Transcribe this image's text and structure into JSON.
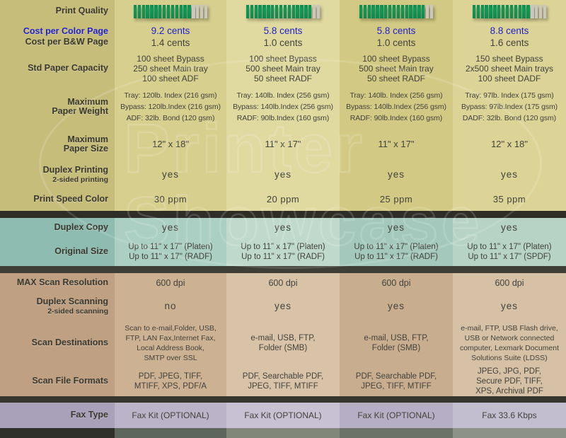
{
  "colors": {
    "accent_blue": "#2222cc",
    "bar_green": "#0d9b59",
    "bar_empty": "#c9c7c0"
  },
  "watermark": {
    "line1": "Printer",
    "line2": "Showcase"
  },
  "chart_data": {
    "type": "table",
    "columns": 4,
    "legend": "4 printer models compared (model headers not visible in crop)",
    "rows": {
      "print_quality": {
        "label": "Print Quality",
        "bars": [
          {
            "filled": 14,
            "total": 18
          },
          {
            "filled": 16,
            "total": 18
          },
          {
            "filled": 16,
            "total": 18
          },
          {
            "filled": 14,
            "total": 18
          }
        ]
      },
      "cost": {
        "color_label": "Cost per Color Page",
        "bw_label": "Cost per B&W Page",
        "color_values": [
          "9.2 cents",
          "5.8 cents",
          "5.8 cents",
          "8.8 cents"
        ],
        "bw_values": [
          "1.4 cents",
          "1.0 cents",
          "1.0 cents",
          "1.6 cents"
        ]
      },
      "std_paper_capacity": {
        "label": "Std Paper Capacity",
        "values": [
          "100 sheet Bypass\n250 sheet Main tray\n100 sheet ADF",
          "100 sheet Bypass\n500 sheet Main tray\n50 sheet RADF",
          "100 sheet Bypass\n500 sheet Main tray\n50 sheet RADF",
          "150 sheet Bypass\n2x500 sheet Main trays\n100 sheet DADF"
        ]
      },
      "max_paper_weight": {
        "label": "Maximum\nPaper Weight",
        "values": [
          "Tray: 120lb. Index (216 gsm)\nBypass: 120lb.Index (216 gsm)\nADF: 32lb. Bond (120 gsm)",
          "Tray: 140lb. Index (256 gsm)\nBypass: 140lb.Index (256 gsm)\nRADF: 90lb.Index (160 gsm)",
          "Tray: 140lb. Index (256 gsm)\nBypass: 140lb.Index (256 gsm)\nRADF: 90lb.Index (160 gsm)",
          "Tray: 97lb. Index (175 gsm)\nBypass: 97lb.Index (175 gsm)\nDADF: 32lb. Bond (120 gsm)"
        ]
      },
      "max_paper_size": {
        "label": "Maximum\nPaper Size",
        "values": [
          "12\" x 18\"",
          "11\" x 17\"",
          "11\" x 17\"",
          "12\" x 18\""
        ]
      },
      "duplex_printing": {
        "label": "Duplex Printing",
        "sublabel": "2-sided printing",
        "values": [
          "yes",
          "yes",
          "yes",
          "yes"
        ]
      },
      "print_speed_color": {
        "label": "Print Speed Color",
        "values": [
          "30 ppm",
          "20 ppm",
          "25 ppm",
          "35 ppm"
        ]
      },
      "duplex_copy": {
        "label": "Duplex Copy",
        "values": [
          "yes",
          "yes",
          "yes",
          "yes"
        ]
      },
      "original_size": {
        "label": "Original Size",
        "values": [
          "Up to 11\" x 17\" (Platen)\nUp to 11\" x 17\" (RADF)",
          "Up to 11\" x 17\" (Platen)\nUp to 11\" x 17\" (RADF)",
          "Up to 11\" x 17\" (Platen)\nUp to 11\" x 17\" (RADF)",
          "Up to 11\" x 17\" (Platen)\nUp to 11\" x 17\" (SPDF)"
        ]
      },
      "max_scan_resolution": {
        "label": "MAX Scan Resolution",
        "values": [
          "600 dpi",
          "600 dpi",
          "600 dpi",
          "600 dpi"
        ]
      },
      "duplex_scanning": {
        "label": "Duplex Scanning",
        "sublabel": "2-sided scanning",
        "values": [
          "no",
          "yes",
          "yes",
          "yes"
        ]
      },
      "scan_destinations": {
        "label": "Scan Destinations",
        "values": [
          "Scan to e-mail,Folder, USB,\nFTP, LAN Fax,Internet Fax,\nLocal Address Book,\nSMTP over SSL",
          "e-mail, USB, FTP,\nFolder (SMB)",
          "e-mail, USB, FTP,\nFolder (SMB)",
          "e-mail, FTP, USB Flash drive,\nUSB or Network connected\ncomputer, Lexmark Document\nSolutions Suite (LDSS)"
        ]
      },
      "scan_file_formats": {
        "label": "Scan File Formats",
        "values": [
          "PDF, JPEG, TIFF,\nMTIFF, XPS, PDF/A",
          "PDF, Searchable PDF,\nJPEG, TIFF, MTIFF",
          "PDF, Searchable PDF,\nJPEG, TIFF, MTIFF",
          "JPEG, JPG, PDF,\nSecure PDF, TIFF,\nXPS, Archival PDF"
        ]
      },
      "fax_type": {
        "label": "Fax Type",
        "values": [
          "Fax Kit  (OPTIONAL)",
          "Fax Kit  (OPTIONAL)",
          "Fax Kit  (OPTIONAL)",
          "Fax 33.6 Kbps"
        ]
      }
    }
  }
}
